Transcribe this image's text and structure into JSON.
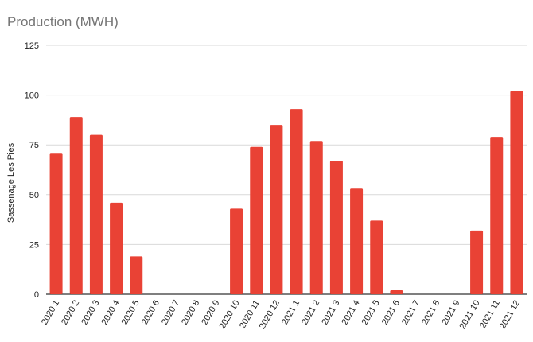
{
  "chart_data": {
    "type": "bar",
    "title": "Production (MWH)",
    "xlabel": "",
    "ylabel": "Sassenage Les Pies",
    "ylim": [
      0,
      125
    ],
    "yticks": [
      0,
      25,
      50,
      75,
      100,
      125
    ],
    "grid": true,
    "legend": "none",
    "bar_color": "#e94235",
    "categories": [
      "2020 1",
      "2020 2",
      "2020 3",
      "2020 4",
      "2020 5",
      "2020 6",
      "2020 7",
      "2020 8",
      "2020 9",
      "2020 10",
      "2020 11",
      "2020 12",
      "2021 1",
      "2021 2",
      "2021 3",
      "2021 4",
      "2021 5",
      "2021 6",
      "2021 7",
      "2021 8",
      "2021 9",
      "2021 10",
      "2021 11",
      "2021 12"
    ],
    "values": [
      71,
      89,
      80,
      46,
      19,
      0,
      0,
      0,
      0,
      43,
      74,
      85,
      93,
      77,
      67,
      53,
      37,
      2,
      0,
      0,
      0,
      32,
      79,
      102
    ]
  }
}
